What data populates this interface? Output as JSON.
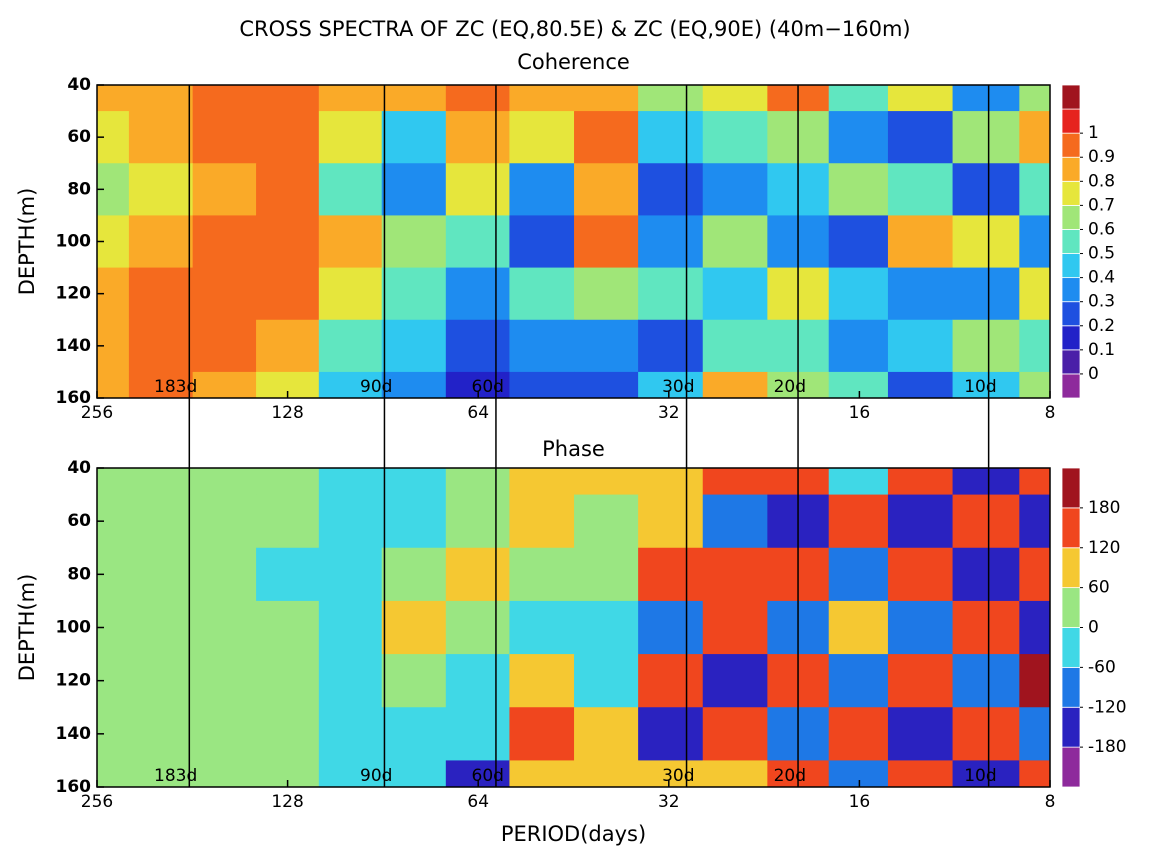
{
  "chart_data": [
    {
      "type": "heatmap",
      "title": "CROSS SPECTRA OF ZC (EQ,80.5E) & ZC (EQ,90E) (40m−160m)",
      "subtitle": "Coherence",
      "ylabel": "DEPTH(m)",
      "xscale": "log",
      "xlim": [
        256,
        8
      ],
      "xticks": [
        256,
        128,
        64,
        32,
        16,
        8
      ],
      "ylim": [
        40,
        160
      ],
      "yticks": [
        40,
        60,
        80,
        100,
        120,
        140,
        160
      ],
      "markers": [
        {
          "value": 183,
          "label": "183d"
        },
        {
          "value": 90,
          "label": "90d"
        },
        {
          "value": 60,
          "label": "60d"
        },
        {
          "value": 30,
          "label": "30d"
        },
        {
          "value": 20,
          "label": "20d"
        },
        {
          "value": 10,
          "label": "10d"
        }
      ],
      "x": [
        256,
        203,
        161,
        128,
        102,
        81,
        64,
        51,
        40,
        32,
        25,
        20,
        16,
        13,
        10,
        8
      ],
      "y": [
        40,
        60,
        80,
        100,
        120,
        140,
        160
      ],
      "z": [
        [
          0.8,
          0.85,
          0.9,
          0.9,
          0.85,
          0.8,
          0.9,
          0.85,
          0.8,
          0.6,
          0.7,
          0.9,
          0.5,
          0.7,
          0.3,
          0.6
        ],
        [
          0.75,
          0.8,
          0.9,
          0.9,
          0.7,
          0.4,
          0.85,
          0.7,
          0.9,
          0.4,
          0.5,
          0.6,
          0.3,
          0.2,
          0.6,
          0.8
        ],
        [
          0.65,
          0.75,
          0.85,
          0.9,
          0.55,
          0.3,
          0.7,
          0.3,
          0.85,
          0.2,
          0.3,
          0.4,
          0.6,
          0.5,
          0.2,
          0.5
        ],
        [
          0.7,
          0.85,
          0.9,
          0.95,
          0.8,
          0.6,
          0.5,
          0.2,
          0.95,
          0.3,
          0.6,
          0.3,
          0.2,
          0.8,
          0.7,
          0.3
        ],
        [
          0.8,
          0.9,
          0.95,
          0.9,
          0.7,
          0.5,
          0.3,
          0.5,
          0.6,
          0.5,
          0.4,
          0.7,
          0.4,
          0.3,
          0.3,
          0.7
        ],
        [
          0.85,
          0.95,
          0.95,
          0.8,
          0.5,
          0.45,
          0.2,
          0.3,
          0.3,
          0.2,
          0.5,
          0.5,
          0.3,
          0.4,
          0.6,
          0.5
        ],
        [
          0.85,
          0.9,
          0.85,
          0.7,
          0.4,
          0.35,
          0.15,
          0.2,
          0.2,
          0.4,
          0.8,
          0.6,
          0.5,
          0.2,
          0.4,
          0.6
        ]
      ],
      "cticks": [
        0,
        0.1,
        0.2,
        0.3,
        0.4,
        0.5,
        0.6,
        0.7,
        0.8,
        0.9,
        1
      ],
      "colors": [
        "#8e2a9c",
        "#4a1fa8",
        "#2222c8",
        "#1e50e0",
        "#1e8cf0",
        "#30c8f0",
        "#60e6c0",
        "#a0e678",
        "#e6e63c",
        "#faaa28",
        "#f56a1e",
        "#e6231e",
        "#a0141e"
      ]
    },
    {
      "type": "heatmap",
      "subtitle": "Phase",
      "ylabel": "DEPTH(m)",
      "xlabel": "PERIOD(days)",
      "xscale": "log",
      "xlim": [
        256,
        8
      ],
      "xticks": [
        256,
        128,
        64,
        32,
        16,
        8
      ],
      "ylim": [
        40,
        160
      ],
      "yticks": [
        40,
        60,
        80,
        100,
        120,
        140,
        160
      ],
      "markers": [
        {
          "value": 183,
          "label": "183d"
        },
        {
          "value": 90,
          "label": "90d"
        },
        {
          "value": 60,
          "label": "60d"
        },
        {
          "value": 30,
          "label": "30d"
        },
        {
          "value": 20,
          "label": "20d"
        },
        {
          "value": 10,
          "label": "10d"
        }
      ],
      "x": [
        256,
        203,
        161,
        128,
        102,
        81,
        64,
        51,
        40,
        32,
        25,
        20,
        16,
        13,
        10,
        8
      ],
      "y": [
        40,
        60,
        80,
        100,
        120,
        140,
        160
      ],
      "z": [
        [
          20,
          20,
          15,
          10,
          -10,
          -30,
          40,
          80,
          60,
          80,
          150,
          170,
          -60,
          170,
          -150,
          160
        ],
        [
          20,
          15,
          10,
          0,
          -20,
          -20,
          50,
          60,
          30,
          100,
          -100,
          -140,
          150,
          -150,
          160,
          -170
        ],
        [
          15,
          10,
          5,
          -10,
          -20,
          10,
          60,
          40,
          20,
          120,
          160,
          120,
          -80,
          120,
          -170,
          150
        ],
        [
          15,
          25,
          15,
          0,
          -15,
          60,
          40,
          -40,
          -20,
          -120,
          120,
          -120,
          100,
          -100,
          140,
          -140
        ],
        [
          20,
          40,
          30,
          10,
          -10,
          40,
          -20,
          100,
          -60,
          130,
          -150,
          160,
          -120,
          160,
          -120,
          180
        ],
        [
          30,
          35,
          25,
          10,
          -20,
          -10,
          -60,
          140,
          60,
          -140,
          140,
          -100,
          170,
          -160,
          170,
          -120
        ],
        [
          25,
          25,
          20,
          5,
          -30,
          -40,
          -150,
          80,
          90,
          110,
          100,
          150,
          -80,
          130,
          -160,
          170
        ]
      ],
      "cticks": [
        -180,
        -120,
        -60,
        0,
        60,
        120,
        180
      ],
      "colors": [
        "#8e2a9c",
        "#2a22c0",
        "#1e78e6",
        "#40d8e6",
        "#9ae682",
        "#f5c832",
        "#f0461e",
        "#a0141e"
      ]
    }
  ]
}
